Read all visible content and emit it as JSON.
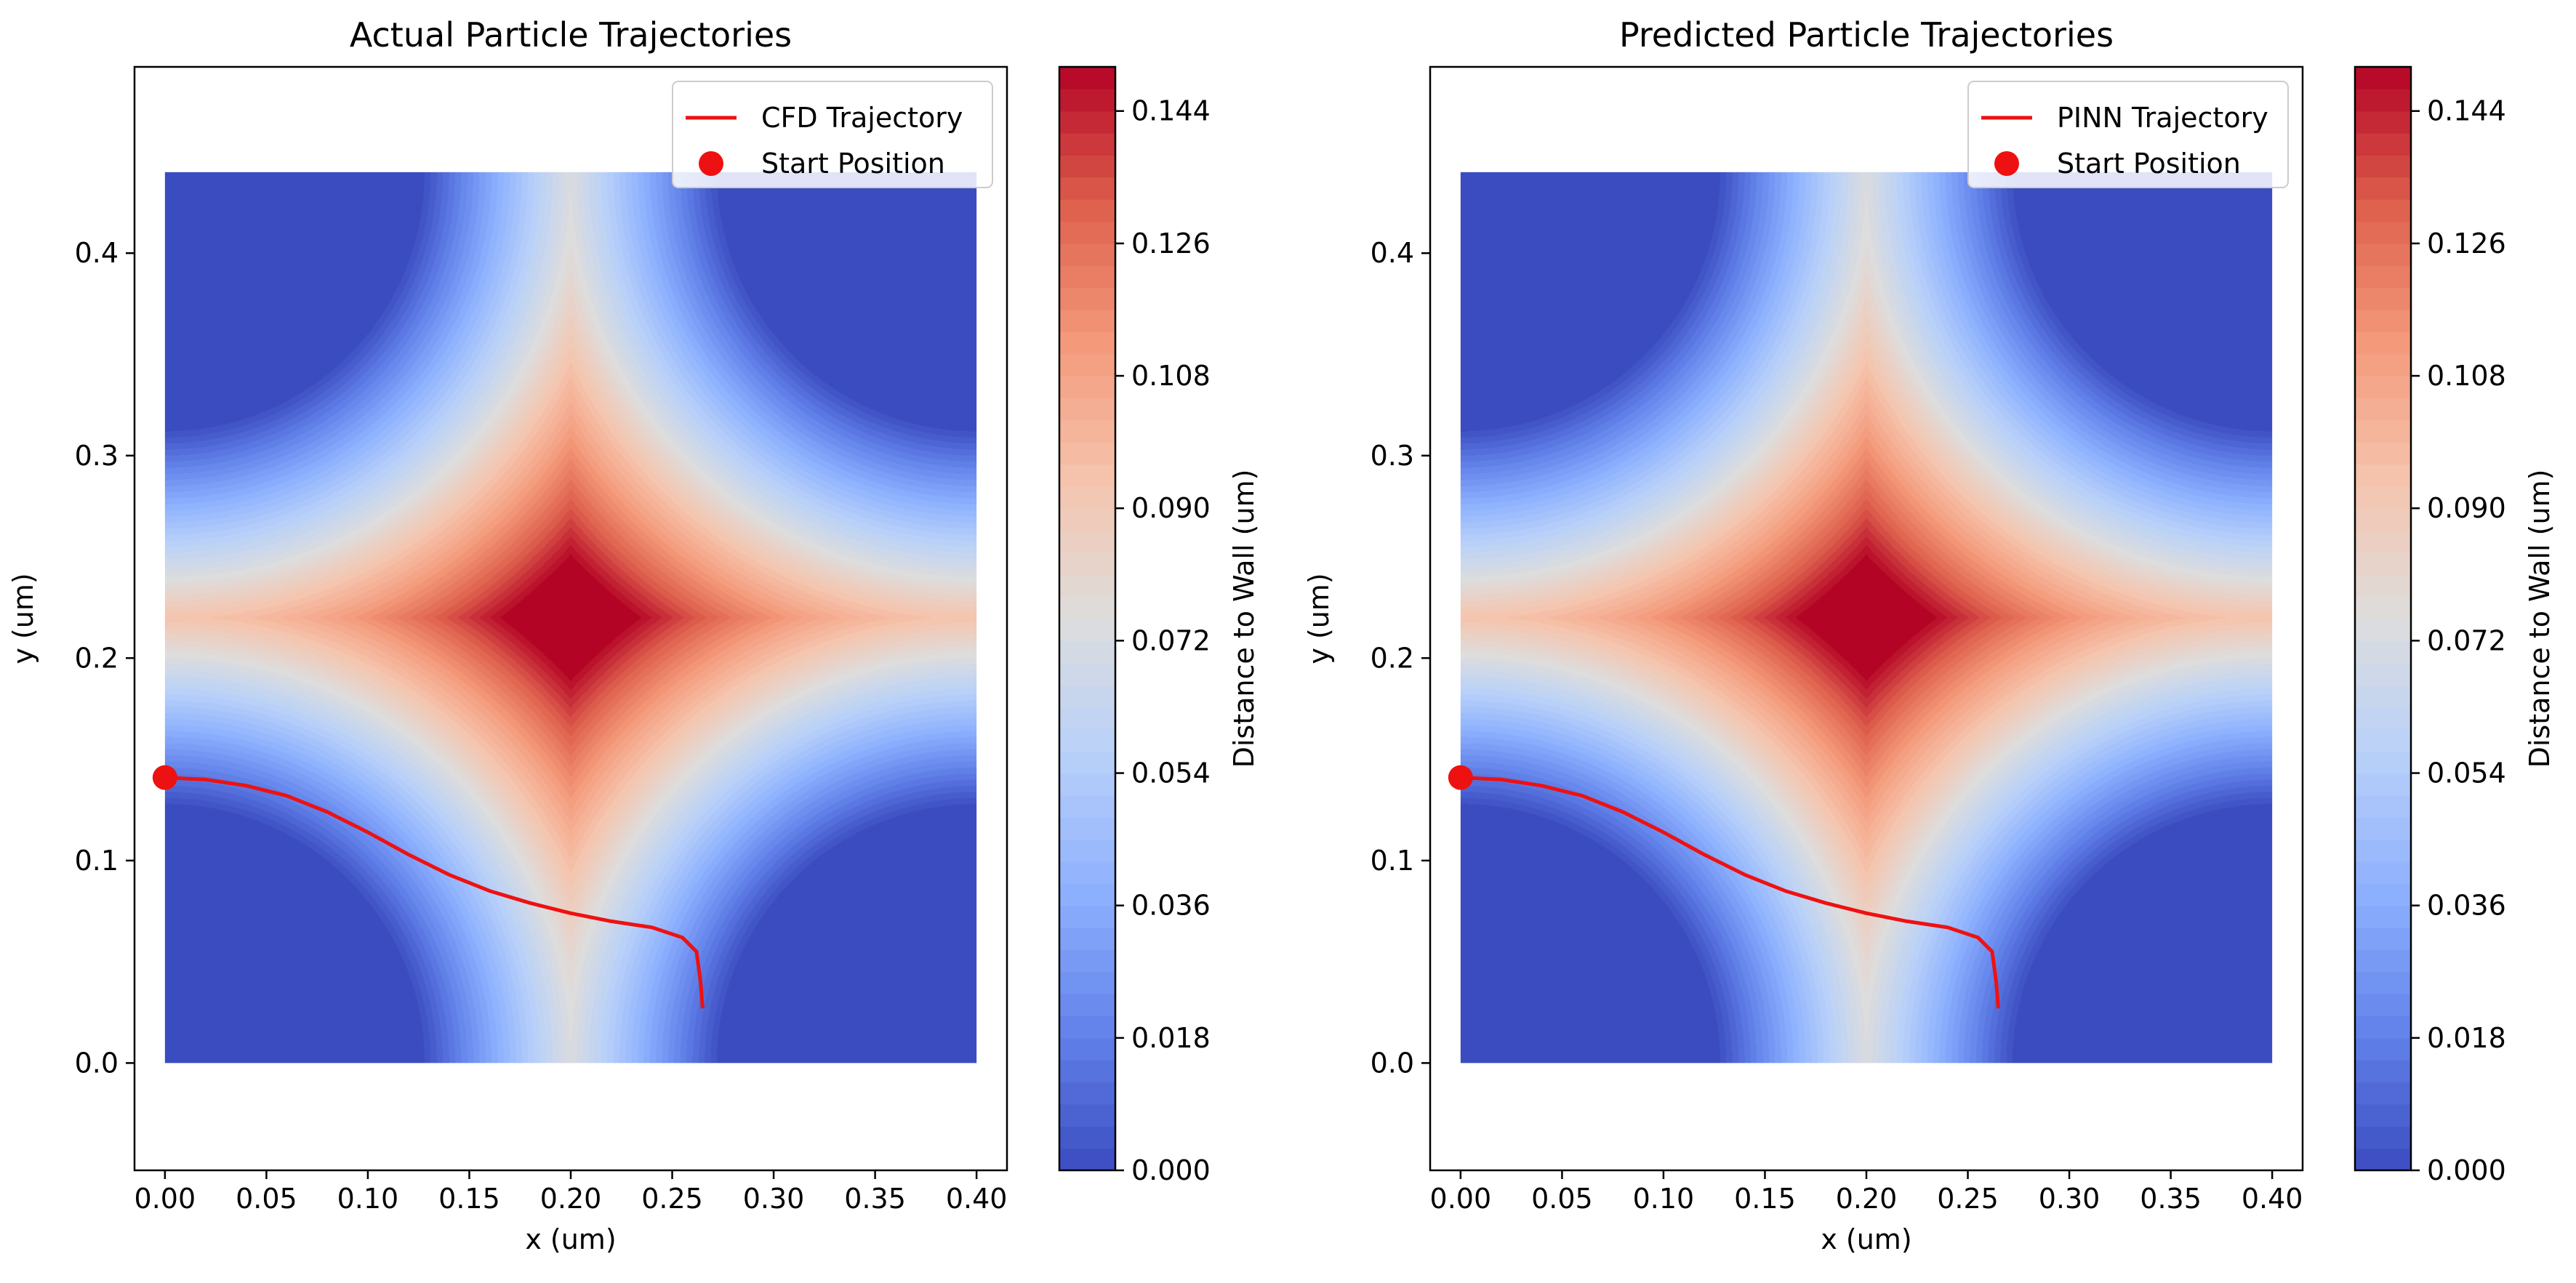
{
  "chart_data": [
    {
      "type": "heatmap",
      "title": "Actual Particle Trajectories",
      "xlabel": "x (um)",
      "ylabel": "y (um)",
      "xlim": [
        -0.015,
        0.415
      ],
      "ylim": [
        -0.053,
        0.492
      ],
      "xticks": [
        "0.00",
        "0.05",
        "0.10",
        "0.15",
        "0.20",
        "0.25",
        "0.30",
        "0.35",
        "0.40"
      ],
      "yticks": [
        "0.0",
        "0.1",
        "0.2",
        "0.3",
        "0.4"
      ],
      "field": {
        "name": "Distance to Wall (um)",
        "x_range": [
          0.0,
          0.4
        ],
        "y_range": [
          0.0,
          0.44
        ],
        "obstacle_centers": [
          [
            0.0,
            0.0
          ],
          [
            0.4,
            0.0
          ],
          [
            0.0,
            0.44
          ],
          [
            0.4,
            0.44
          ]
        ],
        "obstacle_radius_approx": 0.125
      },
      "colorbar": {
        "label": "Distance to Wall (um)",
        "range": [
          0.0,
          0.15
        ],
        "ticks": [
          "0.000",
          "0.018",
          "0.036",
          "0.054",
          "0.072",
          "0.090",
          "0.108",
          "0.126",
          "0.144"
        ],
        "colormap": "coolwarm"
      },
      "legend": {
        "position": "top-right",
        "entries": [
          "CFD Trajectory",
          "Start Position"
        ]
      },
      "series": [
        {
          "name": "CFD Trajectory",
          "color": "#ee1111",
          "x": [
            0.0,
            0.02,
            0.04,
            0.06,
            0.08,
            0.1,
            0.12,
            0.14,
            0.16,
            0.18,
            0.2,
            0.22,
            0.24,
            0.255,
            0.262,
            0.264,
            0.265
          ],
          "y": [
            0.141,
            0.14,
            0.137,
            0.132,
            0.124,
            0.114,
            0.103,
            0.093,
            0.085,
            0.079,
            0.074,
            0.07,
            0.067,
            0.062,
            0.055,
            0.04,
            0.027
          ]
        }
      ],
      "start_position": {
        "name": "Start Position",
        "x": 0.0,
        "y": 0.141,
        "color": "#ee1111"
      }
    },
    {
      "type": "heatmap",
      "title": "Predicted Particle Trajectories",
      "xlabel": "x (um)",
      "ylabel": "y (um)",
      "xlim": [
        -0.015,
        0.415
      ],
      "ylim": [
        -0.053,
        0.492
      ],
      "xticks": [
        "0.00",
        "0.05",
        "0.10",
        "0.15",
        "0.20",
        "0.25",
        "0.30",
        "0.35",
        "0.40"
      ],
      "yticks": [
        "0.0",
        "0.1",
        "0.2",
        "0.3",
        "0.4"
      ],
      "field": {
        "name": "Distance to Wall (um)",
        "x_range": [
          0.0,
          0.4
        ],
        "y_range": [
          0.0,
          0.44
        ],
        "obstacle_centers": [
          [
            0.0,
            0.0
          ],
          [
            0.4,
            0.0
          ],
          [
            0.0,
            0.44
          ],
          [
            0.4,
            0.44
          ]
        ],
        "obstacle_radius_approx": 0.125
      },
      "colorbar": {
        "label": "Distance to Wall (um)",
        "range": [
          0.0,
          0.15
        ],
        "ticks": [
          "0.000",
          "0.018",
          "0.036",
          "0.054",
          "0.072",
          "0.090",
          "0.108",
          "0.126",
          "0.144"
        ],
        "colormap": "coolwarm"
      },
      "legend": {
        "position": "top-right",
        "entries": [
          "PINN Trajectory",
          "Start Position"
        ]
      },
      "series": [
        {
          "name": "PINN Trajectory",
          "color": "#ee1111",
          "x": [
            0.0,
            0.02,
            0.04,
            0.06,
            0.08,
            0.1,
            0.12,
            0.14,
            0.16,
            0.18,
            0.2,
            0.22,
            0.24,
            0.255,
            0.262,
            0.264,
            0.265
          ],
          "y": [
            0.141,
            0.14,
            0.137,
            0.132,
            0.124,
            0.114,
            0.103,
            0.093,
            0.085,
            0.079,
            0.074,
            0.07,
            0.067,
            0.062,
            0.055,
            0.04,
            0.027
          ]
        }
      ],
      "start_position": {
        "name": "Start Position",
        "x": 0.0,
        "y": 0.141,
        "color": "#ee1111"
      }
    }
  ]
}
